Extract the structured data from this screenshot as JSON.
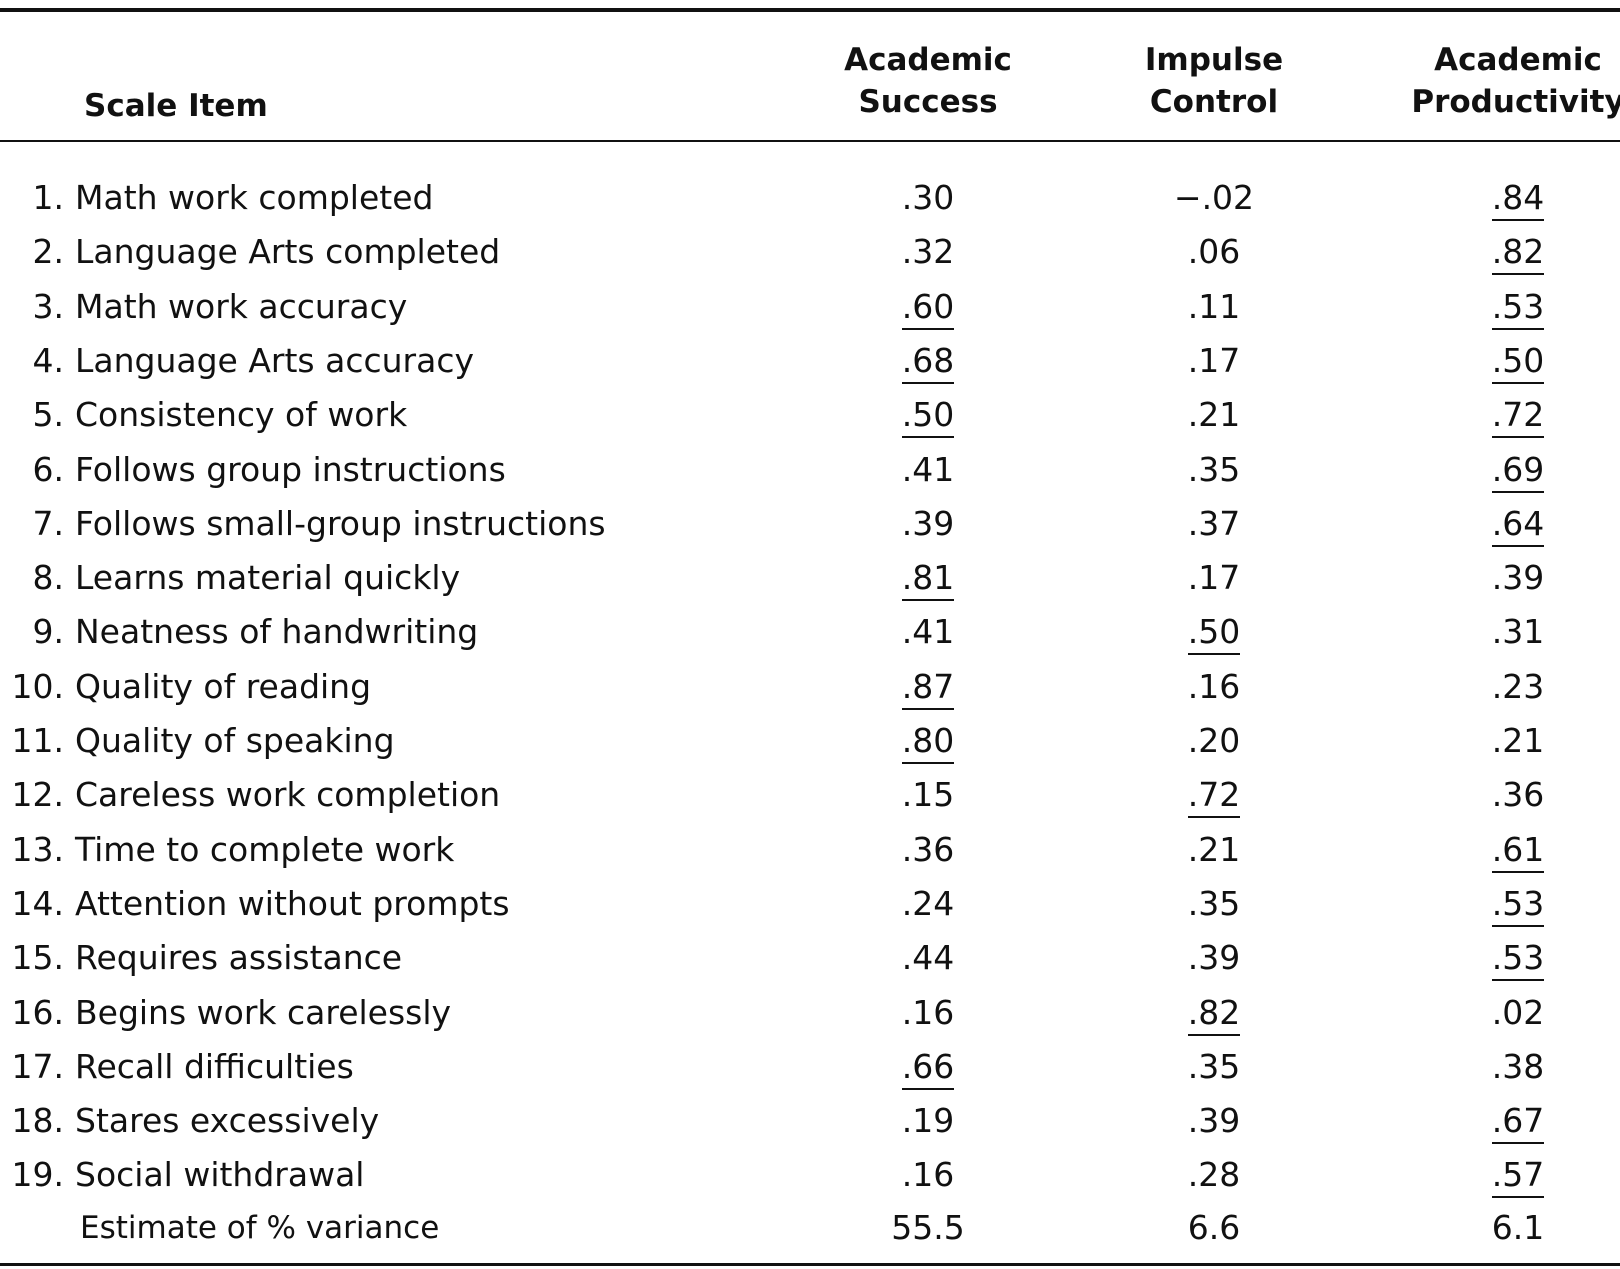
{
  "table": {
    "header": {
      "item": "Scale Item",
      "columns": [
        [
          "Academic",
          "Success"
        ],
        [
          "Impulse",
          "Control"
        ],
        [
          "Academic",
          "Productivity"
        ]
      ]
    },
    "rows": [
      {
        "number": "1.",
        "item": "Math work completed",
        "values": [
          ".30",
          "−.02",
          ".84"
        ],
        "underlined": [
          false,
          false,
          true
        ]
      },
      {
        "number": "2.",
        "item": "Language Arts completed",
        "values": [
          ".32",
          ".06",
          ".82"
        ],
        "underlined": [
          false,
          false,
          true
        ]
      },
      {
        "number": "3.",
        "item": "Math work accuracy",
        "values": [
          ".60",
          ".11",
          ".53"
        ],
        "underlined": [
          true,
          false,
          true
        ]
      },
      {
        "number": "4.",
        "item": "Language Arts accuracy",
        "values": [
          ".68",
          ".17",
          ".50"
        ],
        "underlined": [
          true,
          false,
          true
        ]
      },
      {
        "number": "5.",
        "item": "Consistency of work",
        "values": [
          ".50",
          ".21",
          ".72"
        ],
        "underlined": [
          true,
          false,
          true
        ]
      },
      {
        "number": "6.",
        "item": "Follows group instructions",
        "values": [
          ".41",
          ".35",
          ".69"
        ],
        "underlined": [
          false,
          false,
          true
        ]
      },
      {
        "number": "7.",
        "item": "Follows small-group instructions",
        "values": [
          ".39",
          ".37",
          ".64"
        ],
        "underlined": [
          false,
          false,
          true
        ]
      },
      {
        "number": "8.",
        "item": "Learns material quickly",
        "values": [
          ".81",
          ".17",
          ".39"
        ],
        "underlined": [
          true,
          false,
          false
        ]
      },
      {
        "number": "9.",
        "item": "Neatness of handwriting",
        "values": [
          ".41",
          ".50",
          ".31"
        ],
        "underlined": [
          false,
          true,
          false
        ]
      },
      {
        "number": "10.",
        "item": "Quality of reading",
        "values": [
          ".87",
          ".16",
          ".23"
        ],
        "underlined": [
          true,
          false,
          false
        ]
      },
      {
        "number": "11.",
        "item": "Quality of speaking",
        "values": [
          ".80",
          ".20",
          ".21"
        ],
        "underlined": [
          true,
          false,
          false
        ]
      },
      {
        "number": "12.",
        "item": "Careless work completion",
        "values": [
          ".15",
          ".72",
          ".36"
        ],
        "underlined": [
          false,
          true,
          false
        ]
      },
      {
        "number": "13.",
        "item": "Time to complete work",
        "values": [
          ".36",
          ".21",
          ".61"
        ],
        "underlined": [
          false,
          false,
          true
        ]
      },
      {
        "number": "14.",
        "item": "Attention without prompts",
        "values": [
          ".24",
          ".35",
          ".53"
        ],
        "underlined": [
          false,
          false,
          true
        ]
      },
      {
        "number": "15.",
        "item": "Requires assistance",
        "values": [
          ".44",
          ".39",
          ".53"
        ],
        "underlined": [
          false,
          false,
          true
        ]
      },
      {
        "number": "16.",
        "item": "Begins work carelessly",
        "values": [
          ".16",
          ".82",
          ".02"
        ],
        "underlined": [
          false,
          true,
          false
        ]
      },
      {
        "number": "17.",
        "item": "Recall difficulties",
        "values": [
          ".66",
          ".35",
          ".38"
        ],
        "underlined": [
          true,
          false,
          false
        ]
      },
      {
        "number": "18.",
        "item": "Stares excessively",
        "values": [
          ".19",
          ".39",
          ".67"
        ],
        "underlined": [
          false,
          false,
          true
        ]
      },
      {
        "number": "19.",
        "item": "Social withdrawal",
        "values": [
          ".16",
          ".28",
          ".57"
        ],
        "underlined": [
          false,
          false,
          true
        ]
      }
    ],
    "footer": {
      "item": "Estimate of % variance",
      "values": [
        "55.5",
        "6.6",
        "6.1"
      ]
    }
  }
}
